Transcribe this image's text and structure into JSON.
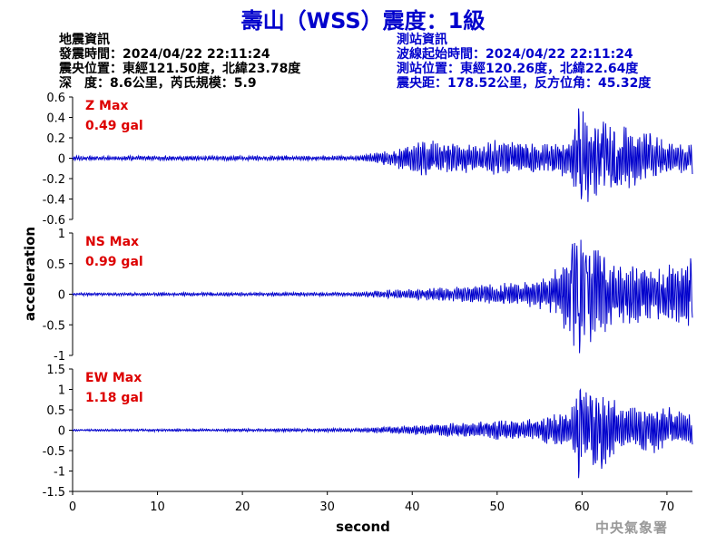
{
  "title": "壽山（WSS）震度：1級",
  "quake_info": {
    "heading": "地震資訊",
    "time": "發震時間：2024/04/22 22:11:24",
    "location": "震央位置：東經121.50度，北緯23.78度",
    "depth_mag": "深　度：8.6公里，芮氏規模：5.9"
  },
  "station_info": {
    "heading": "測站資訊",
    "wave_start": "波線起始時間：2024/04/22 22:11:24",
    "location": "測站位置：東經120.26度，北緯22.64度",
    "distance": "震央距：178.52公里，反方位角：45.32度"
  },
  "credit": "中央氣象署",
  "colors": {
    "title": "#0000cc",
    "trace": "#0000cc",
    "peak_label": "#dd0000",
    "info_right": "#0000cc"
  },
  "chart_data": {
    "type": "line",
    "xlabel": "second",
    "ylabel": "acceleration",
    "xlim": [
      0,
      73
    ],
    "xticks": [
      0,
      10,
      20,
      30,
      40,
      50,
      60,
      70
    ],
    "panels": [
      {
        "component": "Z",
        "peak_label": "Z Max",
        "peak_value": "0.49 gal",
        "ylim": [
          -0.6,
          0.6
        ],
        "yticks": [
          -0.6,
          -0.4,
          -0.2,
          0,
          0.2,
          0.4,
          0.6
        ],
        "ytick_labels": [
          "-0.6",
          "-0.4",
          "-0.2",
          "0",
          "0.2",
          "0.4",
          "0.6"
        ],
        "envelope": [
          [
            0,
            0.02
          ],
          [
            33,
            0.02
          ],
          [
            36,
            0.05
          ],
          [
            38,
            0.07
          ],
          [
            39.5,
            0.15
          ],
          [
            45,
            0.14
          ],
          [
            50,
            0.15
          ],
          [
            55,
            0.12
          ],
          [
            58.5,
            0.16
          ],
          [
            59.5,
            0.45
          ],
          [
            61,
            0.35
          ],
          [
            64,
            0.3
          ],
          [
            70,
            0.15
          ],
          [
            73,
            0.15
          ]
        ],
        "peaks": [
          [
            59.6,
            0.49
          ],
          [
            59.9,
            -0.42
          ],
          [
            62.5,
            0.38
          ],
          [
            64,
            -0.3
          ],
          [
            68,
            0.25
          ]
        ],
        "seed": 11
      },
      {
        "component": "NS",
        "peak_label": "NS Max",
        "peak_value": "0.99 gal",
        "ylim": [
          -1,
          1
        ],
        "yticks": [
          -1,
          -0.5,
          0,
          0.5,
          1
        ],
        "ytick_labels": [
          "-1",
          "-0.5",
          "0",
          "0.5",
          "1"
        ],
        "envelope": [
          [
            0,
            0.02
          ],
          [
            33,
            0.03
          ],
          [
            38,
            0.07
          ],
          [
            44,
            0.1
          ],
          [
            50,
            0.15
          ],
          [
            55,
            0.2
          ],
          [
            57.5,
            0.4
          ],
          [
            58.5,
            0.8
          ],
          [
            61,
            0.7
          ],
          [
            64,
            0.45
          ],
          [
            70,
            0.4
          ],
          [
            73,
            0.55
          ]
        ],
        "peaks": [
          [
            58.8,
            0.9
          ],
          [
            59.7,
            -0.99
          ],
          [
            60.5,
            0.75
          ],
          [
            62.6,
            0.7
          ],
          [
            72.8,
            0.65
          ]
        ],
        "seed": 23
      },
      {
        "component": "EW",
        "peak_label": "EW Max",
        "peak_value": "1.18 gal",
        "ylim": [
          -1.5,
          1.5
        ],
        "yticks": [
          -1.5,
          -1,
          -0.5,
          0,
          0.5,
          1,
          1.5
        ],
        "ytick_labels": [
          "-1.5",
          "-1",
          "-0.5",
          "0",
          "0.5",
          "1",
          "1.5"
        ],
        "envelope": [
          [
            0,
            0.02
          ],
          [
            33,
            0.04
          ],
          [
            38,
            0.08
          ],
          [
            45,
            0.15
          ],
          [
            50,
            0.2
          ],
          [
            55,
            0.25
          ],
          [
            58.5,
            0.4
          ],
          [
            59.5,
            1.0
          ],
          [
            61,
            0.85
          ],
          [
            65,
            0.55
          ],
          [
            70,
            0.45
          ],
          [
            73,
            0.4
          ]
        ],
        "peaks": [
          [
            59.8,
            1.05
          ],
          [
            59.6,
            -1.18
          ],
          [
            61,
            0.85
          ],
          [
            62.3,
            -1.0
          ],
          [
            70.3,
            0.6
          ]
        ],
        "seed": 37
      }
    ]
  }
}
